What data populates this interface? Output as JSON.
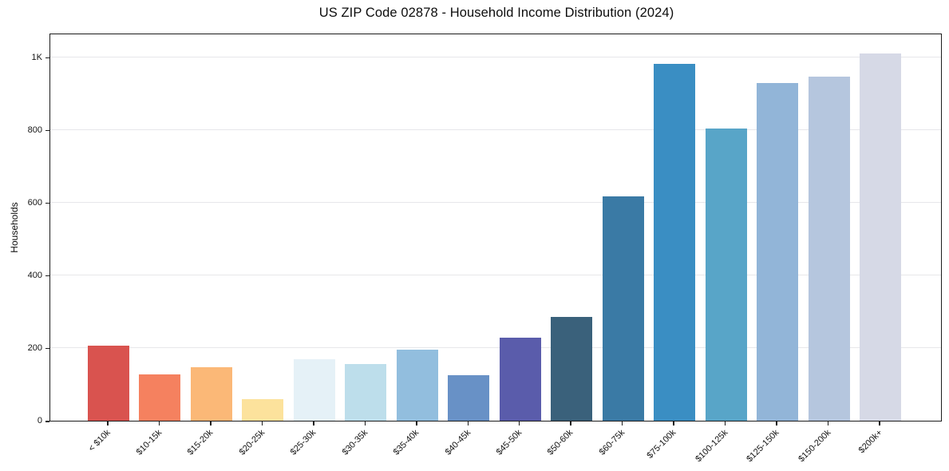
{
  "chart_data": {
    "type": "bar",
    "title": "US ZIP Code 02878 - Household Income Distribution (2024)",
    "xlabel": "",
    "ylabel": "Households",
    "categories": [
      "< $10k",
      "$10-15k",
      "$15-20k",
      "$20-25k",
      "$25-30k",
      "$30-35k",
      "$35-40k",
      "$40-45k",
      "$45-50k",
      "$50-60k",
      "$60-75k",
      "$75-100k",
      "$100-125k",
      "$125-150k",
      "$150-200k",
      "$200k+"
    ],
    "values": [
      207,
      128,
      148,
      60,
      170,
      155,
      195,
      125,
      228,
      286,
      617,
      982,
      804,
      930,
      947,
      1011
    ],
    "bar_colors": [
      "#d9534f",
      "#f5815f",
      "#fbb877",
      "#fce29c",
      "#e5f1f7",
      "#bddeeb",
      "#92bede",
      "#6891c6",
      "#5a5cab",
      "#3a617b",
      "#3a7aa5",
      "#3a8ec3",
      "#58a5c8",
      "#92b5d8",
      "#b5c6de",
      "#d6d9e6"
    ],
    "ylim": [
      0,
      1068
    ],
    "yticks": [
      {
        "value": 0,
        "label": "0"
      },
      {
        "value": 200,
        "label": "200"
      },
      {
        "value": 400,
        "label": "400"
      },
      {
        "value": 600,
        "label": "600"
      },
      {
        "value": 800,
        "label": "800"
      },
      {
        "value": 1000,
        "label": "1K"
      }
    ],
    "grid": "horizontal",
    "legend": "none",
    "xtick_rotation_deg": 45
  },
  "style_colors": {
    "background": "#ffffff",
    "axis_frame": "#1c1c1c",
    "gridline": "#e7e7ea",
    "text": "#141414"
  }
}
